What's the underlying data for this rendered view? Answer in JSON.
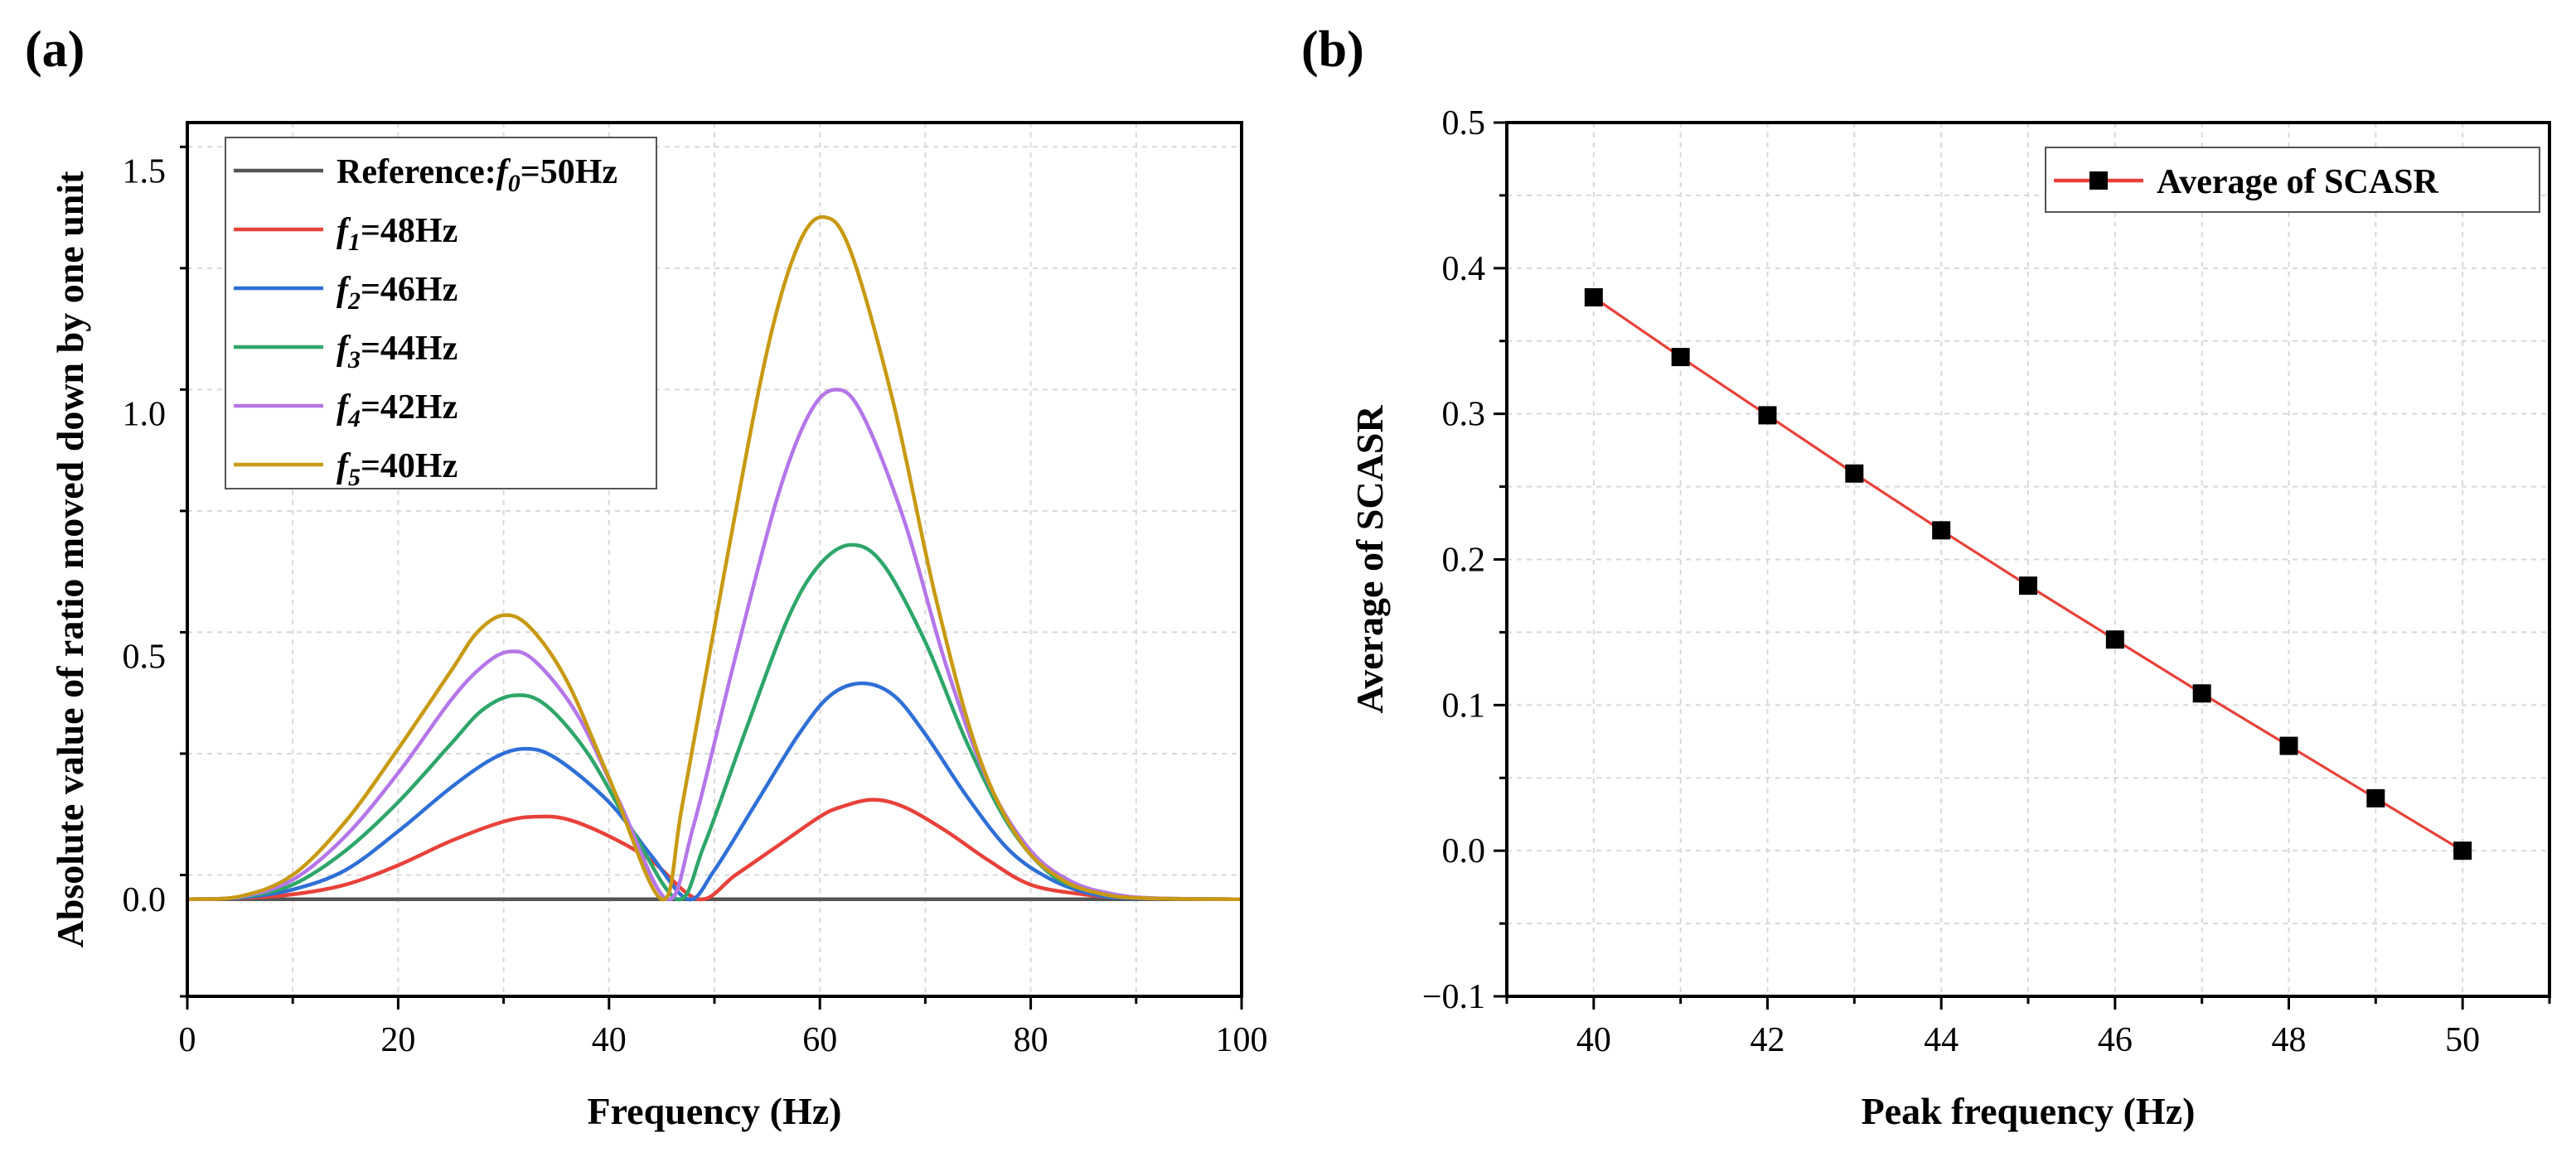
{
  "chart_data": [
    {
      "panel_label": "(a)",
      "type": "line",
      "title": "",
      "xlabel": "Frequency (Hz)",
      "ylabel": "Absolute value of ratio moved down by one unit",
      "xlim": [
        0,
        100
      ],
      "ylim": [
        -0.2,
        1.6
      ],
      "xticks": [
        0,
        20,
        40,
        60,
        80,
        100
      ],
      "yticks": [
        0.0,
        0.5,
        1.0,
        1.5
      ],
      "xtick_labels": [
        "0",
        "20",
        "40",
        "60",
        "80",
        "100"
      ],
      "ytick_labels": [
        "0.0",
        "0.5",
        "1.0",
        "1.5"
      ],
      "grid": true,
      "legend_position": "top-left",
      "series": [
        {
          "name": "Reference:f0=50Hz",
          "legend_main": "Reference:",
          "legend_f": "f",
          "legend_sub": "0",
          "legend_rest": "=50Hz",
          "color": "#555555",
          "x": [
            0,
            100
          ],
          "y": [
            0,
            0
          ]
        },
        {
          "name": "f1=48Hz",
          "legend_main": "",
          "legend_f": "f",
          "legend_sub": "1",
          "legend_rest": "=48Hz",
          "color": "#e8413a",
          "x": [
            0,
            5,
            10,
            15,
            20,
            25,
            30,
            33,
            36,
            40,
            44,
            48.5,
            52,
            56,
            60,
            62,
            65,
            68,
            72,
            76,
            80,
            85,
            90,
            100
          ],
          "y": [
            0,
            0.002,
            0.01,
            0.03,
            0.07,
            0.12,
            0.16,
            0.17,
            0.165,
            0.13,
            0.08,
            0,
            0.05,
            0.11,
            0.17,
            0.19,
            0.205,
            0.19,
            0.14,
            0.08,
            0.03,
            0.01,
            0.002,
            0
          ]
        },
        {
          "name": "f2=46Hz",
          "legend_main": "",
          "legend_f": "f",
          "legend_sub": "2",
          "legend_rest": "=46Hz",
          "color": "#2f6fd6",
          "x": [
            0,
            5,
            10,
            15,
            20,
            25,
            29,
            32,
            35,
            40,
            44,
            47.5,
            50,
            54,
            58,
            61,
            64,
            67,
            70,
            74,
            78,
            82,
            86,
            90,
            100
          ],
          "y": [
            0,
            0.003,
            0.02,
            0.06,
            0.14,
            0.23,
            0.29,
            0.31,
            0.29,
            0.2,
            0.09,
            0,
            0.06,
            0.2,
            0.34,
            0.42,
            0.445,
            0.42,
            0.34,
            0.21,
            0.1,
            0.04,
            0.01,
            0.002,
            0
          ]
        },
        {
          "name": "f3=44Hz",
          "legend_main": "",
          "legend_f": "f",
          "legend_sub": "3",
          "legend_rest": "=44Hz",
          "color": "#2ea66a",
          "x": [
            0,
            5,
            10,
            15,
            20,
            25,
            28,
            31,
            34,
            38,
            42,
            46.5,
            49,
            53,
            57,
            60,
            63,
            66,
            70,
            74,
            78,
            82,
            86,
            90,
            100
          ],
          "y": [
            0,
            0.004,
            0.03,
            0.1,
            0.2,
            0.32,
            0.39,
            0.42,
            0.4,
            0.3,
            0.15,
            0,
            0.11,
            0.35,
            0.58,
            0.69,
            0.73,
            0.69,
            0.53,
            0.32,
            0.15,
            0.05,
            0.015,
            0.003,
            0
          ]
        },
        {
          "name": "f4=42Hz",
          "legend_main": "",
          "legend_f": "f",
          "legend_sub": "4",
          "legend_rest": "=42Hz",
          "color": "#b476e8",
          "x": [
            0,
            5,
            10,
            15,
            20,
            25,
            28,
            30.5,
            33,
            37,
            41,
            45.5,
            48,
            52,
            56,
            59,
            61.5,
            64,
            68,
            72,
            76,
            80,
            84,
            88,
            92,
            100
          ],
          "y": [
            0,
            0.005,
            0.04,
            0.13,
            0.26,
            0.41,
            0.48,
            0.51,
            0.49,
            0.38,
            0.2,
            0,
            0.15,
            0.5,
            0.83,
            1.0,
            1.05,
            1.0,
            0.78,
            0.48,
            0.24,
            0.1,
            0.035,
            0.01,
            0.002,
            0
          ]
        },
        {
          "name": "f5=40Hz",
          "legend_main": "",
          "legend_f": "f",
          "legend_sub": "5",
          "legend_rest": "=40Hz",
          "color": "#c89a12",
          "x": [
            0,
            5,
            10,
            15,
            20,
            25,
            27.5,
            30,
            32.5,
            36,
            40,
            45,
            47,
            51,
            55,
            58,
            60.5,
            63,
            67,
            71,
            75,
            79,
            83,
            87,
            91,
            100
          ],
          "y": [
            0,
            0.006,
            0.05,
            0.16,
            0.31,
            0.47,
            0.55,
            0.585,
            0.56,
            0.45,
            0.25,
            0,
            0.2,
            0.68,
            1.13,
            1.35,
            1.405,
            1.33,
            1.02,
            0.62,
            0.3,
            0.12,
            0.04,
            0.01,
            0.002,
            0
          ]
        }
      ]
    },
    {
      "panel_label": "(b)",
      "type": "line",
      "title": "",
      "xlabel": "Peak frequency (Hz)",
      "ylabel": "Average of SCASR",
      "xlim": [
        39,
        51
      ],
      "ylim": [
        -0.1,
        0.5
      ],
      "xticks": [
        40,
        42,
        44,
        46,
        48,
        50
      ],
      "yticks": [
        -0.1,
        0.0,
        0.1,
        0.2,
        0.3,
        0.4,
        0.5
      ],
      "xtick_labels": [
        "40",
        "42",
        "44",
        "46",
        "48",
        "50"
      ],
      "ytick_labels": [
        "−0.1",
        "0.0",
        "0.1",
        "0.2",
        "0.3",
        "0.4",
        "0.5"
      ],
      "grid": true,
      "legend_position": "top-right",
      "series": [
        {
          "name": "Average of  SCASR",
          "color": "#e8413a",
          "marker": "square",
          "marker_color": "#000000",
          "x": [
            40,
            41,
            42,
            43,
            44,
            45,
            46,
            47,
            48,
            49,
            50
          ],
          "y": [
            0.38,
            0.339,
            0.299,
            0.259,
            0.22,
            0.182,
            0.145,
            0.108,
            0.072,
            0.036,
            0.0
          ]
        }
      ]
    }
  ]
}
